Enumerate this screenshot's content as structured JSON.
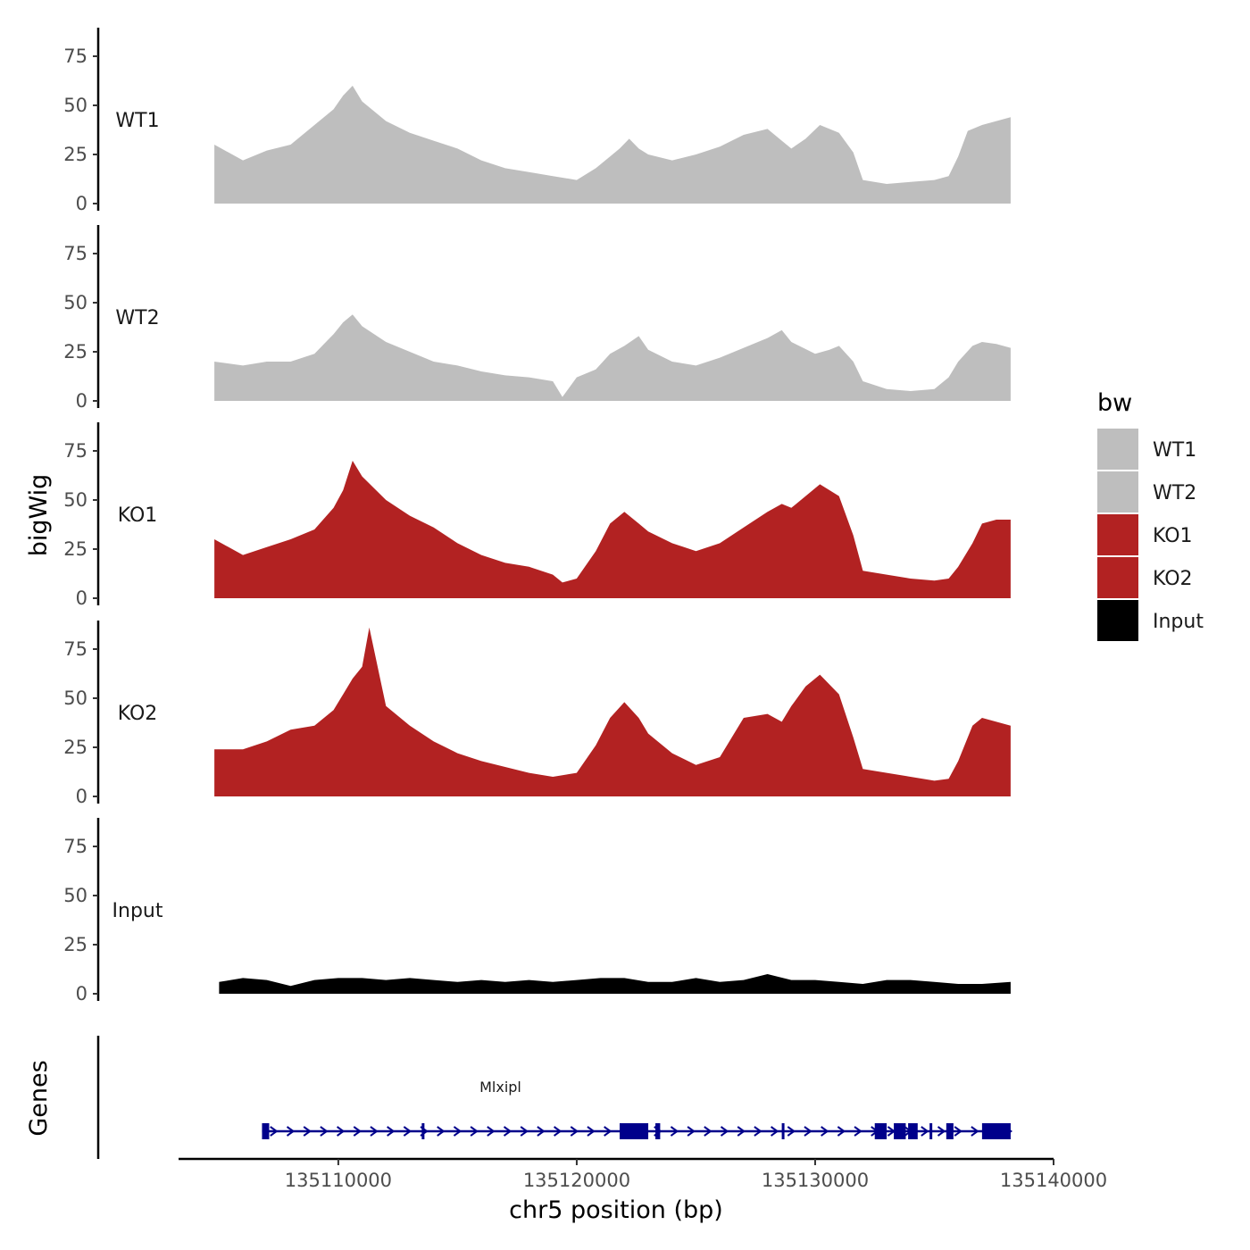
{
  "chart_data": {
    "type": "area",
    "title": "",
    "ylabel": "bigWig",
    "xlabel": "chr5 position (bp)",
    "ylim": [
      0,
      90
    ],
    "y_ticks": [
      0,
      25,
      50,
      75
    ],
    "y_tick_labels": [
      "0",
      "25",
      "50",
      "75"
    ],
    "xlim": [
      135103300,
      135140000
    ],
    "x_ticks": [
      135110000,
      135120000,
      135130000,
      135140000
    ],
    "x_tick_labels": [
      "135110000",
      "135120000",
      "135130000",
      "135140000"
    ],
    "series": [
      {
        "name": "WT1",
        "color": "#bebebe",
        "x": [
          135104800,
          135106000,
          135107000,
          135108000,
          135109000,
          135109800,
          135110200,
          135110600,
          135111000,
          135112000,
          135113000,
          135114000,
          135115000,
          135116000,
          135117000,
          135118000,
          135119000,
          135120000,
          135120800,
          135121400,
          135121800,
          135122200,
          135122600,
          135123000,
          135124000,
          135125000,
          135126000,
          135127000,
          135128000,
          135128600,
          135129000,
          135129600,
          135130200,
          135131000,
          135131600,
          135132000,
          135133000,
          135134000,
          135135000,
          135135600,
          135136000,
          135136400,
          135137000,
          135137600,
          135138200
        ],
        "values": [
          30,
          22,
          27,
          30,
          40,
          48,
          55,
          60,
          52,
          42,
          36,
          32,
          28,
          22,
          18,
          16,
          14,
          12,
          18,
          24,
          28,
          33,
          28,
          25,
          22,
          25,
          29,
          35,
          38,
          32,
          28,
          33,
          40,
          36,
          26,
          12,
          10,
          11,
          12,
          14,
          24,
          37,
          40,
          42,
          44
        ]
      },
      {
        "name": "WT2",
        "color": "#bebebe",
        "x": [
          135104800,
          135106000,
          135107000,
          135108000,
          135109000,
          135109800,
          135110200,
          135110600,
          135111000,
          135112000,
          135113000,
          135114000,
          135115000,
          135116000,
          135117000,
          135118000,
          135119000,
          135119400,
          135120000,
          135120800,
          135121400,
          135122000,
          135122600,
          135123000,
          135124000,
          135125000,
          135126000,
          135127000,
          135128000,
          135128600,
          135129000,
          135130000,
          135130600,
          135131000,
          135131600,
          135132000,
          135133000,
          135134000,
          135135000,
          135135600,
          135136000,
          135136600,
          135137000,
          135137600,
          135138200
        ],
        "values": [
          20,
          18,
          20,
          20,
          24,
          34,
          40,
          44,
          38,
          30,
          25,
          20,
          18,
          15,
          13,
          12,
          10,
          2,
          12,
          16,
          24,
          28,
          33,
          26,
          20,
          18,
          22,
          27,
          32,
          36,
          30,
          24,
          26,
          28,
          20,
          10,
          6,
          5,
          6,
          12,
          20,
          28,
          30,
          29,
          27
        ]
      },
      {
        "name": "KO1",
        "color": "#b22222",
        "x": [
          135104800,
          135106000,
          135107000,
          135108000,
          135109000,
          135109800,
          135110200,
          135110600,
          135111000,
          135112000,
          135113000,
          135114000,
          135115000,
          135116000,
          135117000,
          135118000,
          135119000,
          135119400,
          135120000,
          135120800,
          135121400,
          135122000,
          135122600,
          135123000,
          135124000,
          135125000,
          135126000,
          135127000,
          135128000,
          135128600,
          135129000,
          135129600,
          135130200,
          135131000,
          135131600,
          135132000,
          135133000,
          135134000,
          135135000,
          135135600,
          135136000,
          135136600,
          135137000,
          135137600,
          135138200
        ],
        "values": [
          30,
          22,
          26,
          30,
          35,
          46,
          55,
          70,
          62,
          50,
          42,
          36,
          28,
          22,
          18,
          16,
          12,
          8,
          10,
          24,
          38,
          44,
          38,
          34,
          28,
          24,
          28,
          36,
          44,
          48,
          46,
          52,
          58,
          52,
          32,
          14,
          12,
          10,
          9,
          10,
          16,
          28,
          38,
          40,
          40
        ]
      },
      {
        "name": "KO2",
        "color": "#b22222",
        "x": [
          135104800,
          135106000,
          135107000,
          135108000,
          135109000,
          135109800,
          135110200,
          135110600,
          135111000,
          135111300,
          135112000,
          135113000,
          135114000,
          135115000,
          135116000,
          135117000,
          135118000,
          135119000,
          135120000,
          135120800,
          135121400,
          135122000,
          135122600,
          135123000,
          135124000,
          135125000,
          135126000,
          135127000,
          135128000,
          135128600,
          135129000,
          135129600,
          135130200,
          135131000,
          135131600,
          135132000,
          135133000,
          135134000,
          135135000,
          135135600,
          135136000,
          135136600,
          135137000,
          135137600,
          135138200
        ],
        "values": [
          24,
          24,
          28,
          34,
          36,
          44,
          52,
          60,
          66,
          86,
          46,
          36,
          28,
          22,
          18,
          15,
          12,
          10,
          12,
          26,
          40,
          48,
          40,
          32,
          22,
          16,
          20,
          40,
          42,
          38,
          46,
          56,
          62,
          52,
          30,
          14,
          12,
          10,
          8,
          9,
          18,
          36,
          40,
          38,
          36
        ]
      },
      {
        "name": "Input",
        "color": "#000000",
        "x": [
          135105000,
          135106000,
          135107000,
          135108000,
          135109000,
          135110000,
          135111000,
          135112000,
          135113000,
          135114000,
          135115000,
          135116000,
          135117000,
          135118000,
          135119000,
          135120000,
          135121000,
          135122000,
          135123000,
          135124000,
          135125000,
          135126000,
          135127000,
          135128000,
          135129000,
          135130000,
          135131000,
          135132000,
          135133000,
          135134000,
          135135000,
          135136000,
          135137000,
          135138200
        ],
        "values": [
          6,
          8,
          7,
          4,
          7,
          8,
          8,
          7,
          8,
          7,
          6,
          7,
          6,
          7,
          6,
          7,
          8,
          8,
          6,
          6,
          8,
          6,
          7,
          10,
          7,
          7,
          6,
          5,
          7,
          7,
          6,
          5,
          5,
          6
        ]
      }
    ],
    "gene_track": {
      "label": "Genes",
      "gene_name": "Mlxipl",
      "strand": "+",
      "start": 135106800,
      "end": 135138200,
      "color": "#00008b",
      "exons": [
        [
          135106800,
          135107100
        ],
        [
          135113500,
          135113600
        ],
        [
          135121800,
          135123000
        ],
        [
          135123300,
          135123500
        ],
        [
          135128600,
          135128700
        ],
        [
          135132500,
          135133000
        ],
        [
          135133300,
          135133800
        ],
        [
          135133900,
          135134300
        ],
        [
          135134800,
          135134900
        ],
        [
          135135500,
          135135800
        ],
        [
          135137000,
          135138200
        ]
      ]
    },
    "legend": {
      "title": "bw",
      "position": "right",
      "entries": [
        {
          "label": "WT1",
          "color": "#bebebe"
        },
        {
          "label": "WT2",
          "color": "#bebebe"
        },
        {
          "label": "KO1",
          "color": "#b22222"
        },
        {
          "label": "KO2",
          "color": "#b22222"
        },
        {
          "label": "Input",
          "color": "#000000"
        }
      ]
    }
  }
}
